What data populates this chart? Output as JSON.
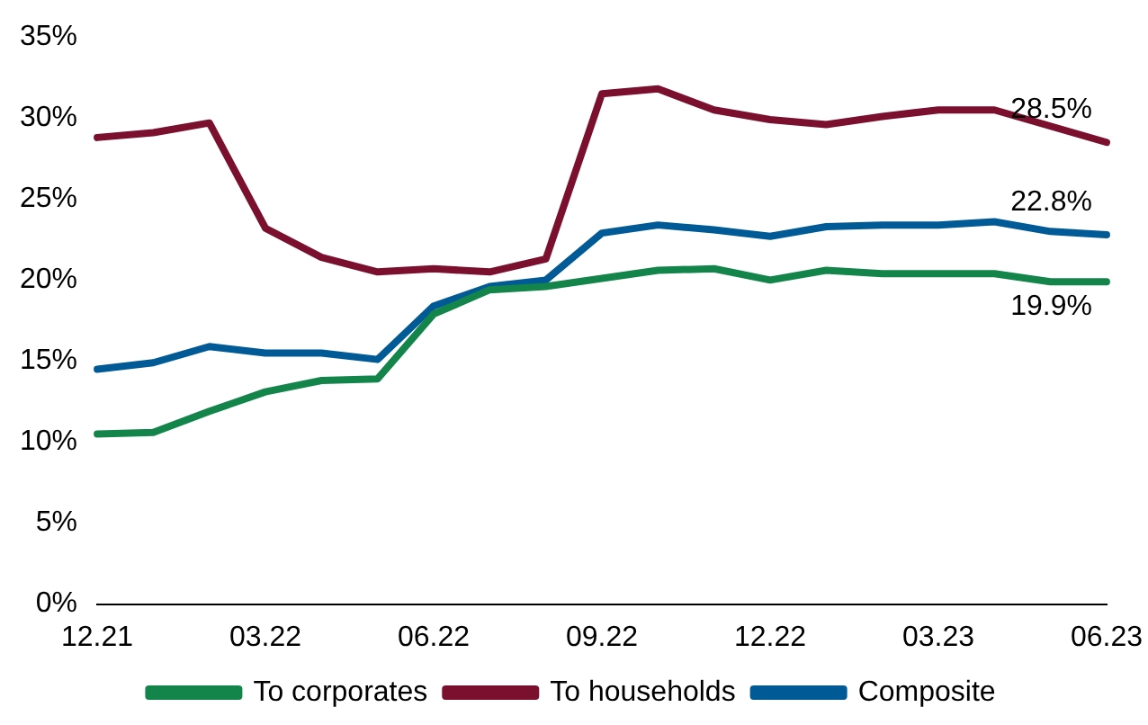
{
  "chart_data": {
    "type": "line",
    "categories": [
      "12.21",
      null,
      null,
      "03.22",
      null,
      null,
      "06.22",
      null,
      null,
      "09.22",
      null,
      null,
      "12.22",
      null,
      null,
      "03.23",
      null,
      null,
      "06.23"
    ],
    "series": [
      {
        "name": "To corporates",
        "color": "#13854a",
        "values": [
          10.5,
          10.6,
          11.9,
          13.1,
          13.8,
          13.9,
          17.9,
          19.4,
          19.6,
          20.1,
          20.6,
          20.7,
          20.0,
          20.6,
          20.4,
          20.4,
          20.4,
          19.9,
          19.9
        ]
      },
      {
        "name": "To households",
        "color": "#7b0f2e",
        "values": [
          28.8,
          29.1,
          29.7,
          23.2,
          21.4,
          20.5,
          20.7,
          20.5,
          21.3,
          31.5,
          31.8,
          30.5,
          29.9,
          29.6,
          30.1,
          30.5,
          30.5,
          29.5,
          28.5
        ]
      },
      {
        "name": "Composite",
        "color": "#005a96",
        "values": [
          14.5,
          14.9,
          15.9,
          15.5,
          15.5,
          15.1,
          18.4,
          19.6,
          20.0,
          22.9,
          23.4,
          23.1,
          22.7,
          23.3,
          23.4,
          23.4,
          23.6,
          23.0,
          22.8
        ]
      }
    ],
    "ylim": [
      0,
      35
    ],
    "yticks": [
      {
        "value": 0,
        "label": "0%"
      },
      {
        "value": 5,
        "label": "5%"
      },
      {
        "value": 10,
        "label": "10%"
      },
      {
        "value": 15,
        "label": "15%"
      },
      {
        "value": 20,
        "label": "20%"
      },
      {
        "value": 25,
        "label": "25%"
      },
      {
        "value": 30,
        "label": "30%"
      },
      {
        "value": 35,
        "label": "35%"
      }
    ],
    "annotations": [
      {
        "text": "28.5%",
        "x": "06.23",
        "y": 28.5
      },
      {
        "text": "22.8%",
        "x": "06.23",
        "y": 22.8
      },
      {
        "text": "19.9%",
        "x": "06.23",
        "y": 19.9
      }
    ],
    "legend": "bottom",
    "grid": false,
    "marker": "none",
    "line_style": "solid"
  }
}
